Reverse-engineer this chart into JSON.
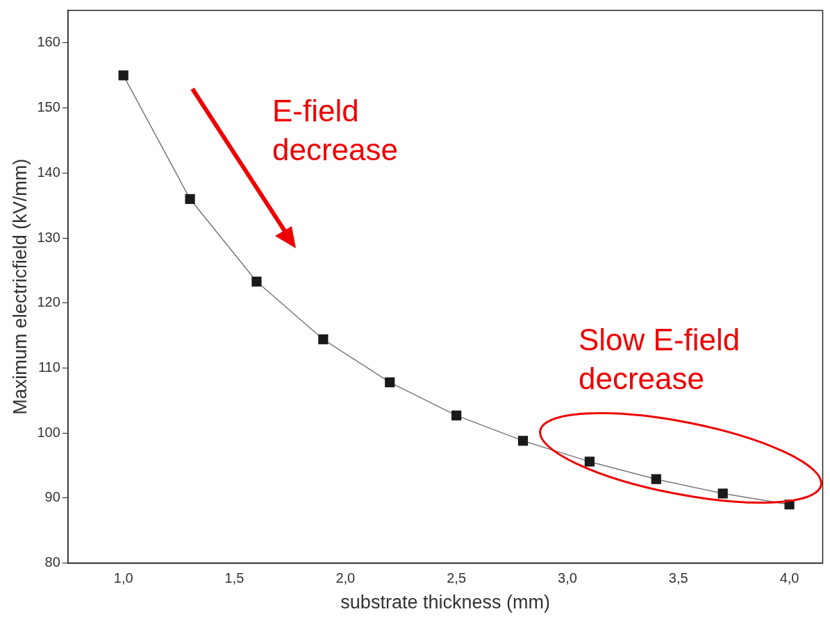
{
  "chart_data": {
    "type": "line",
    "xlabel": "substrate thickness (mm)",
    "ylabel": "Maximum electricfield (kV/mm)",
    "x": [
      1.0,
      1.3,
      1.6,
      1.9,
      2.2,
      2.5,
      2.8,
      3.1,
      3.4,
      3.7,
      4.0
    ],
    "series": [
      {
        "color": "#1a1a1a",
        "values": [
          155,
          136,
          123.3,
          114.4,
          107.8,
          102.7,
          98.8,
          95.6,
          92.9,
          90.7,
          89.0
        ]
      }
    ],
    "xlim": [
      0.75,
      4.15
    ],
    "xticks": [
      {
        "value": 1.0,
        "label": "1,0"
      },
      {
        "value": 1.5,
        "label": "1,5"
      },
      {
        "value": 2.0,
        "label": "2,0"
      },
      {
        "value": 2.5,
        "label": "2,5"
      },
      {
        "value": 3.0,
        "label": "3,0"
      },
      {
        "value": 3.5,
        "label": "3,5"
      },
      {
        "value": 4.0,
        "label": "4,0"
      }
    ],
    "ylim": [
      80,
      165
    ],
    "yticks": [
      80,
      90,
      100,
      110,
      120,
      130,
      140,
      150,
      160
    ],
    "annotations": [
      "E-field decrease",
      "Slow E-field decrease"
    ],
    "marker": "square",
    "line_style": "solid",
    "grid": false,
    "legend": false
  }
}
